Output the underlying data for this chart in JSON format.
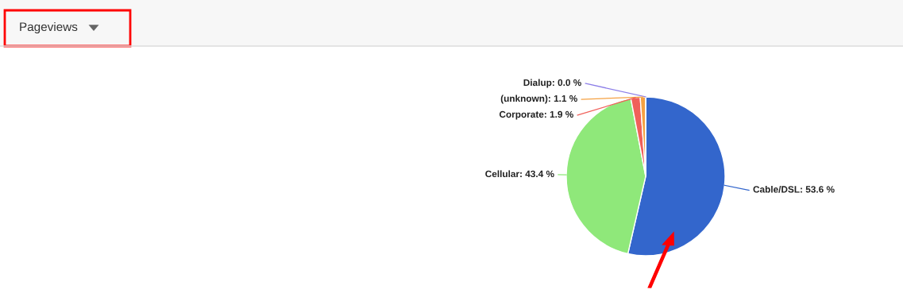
{
  "chart_data": {
    "type": "pie",
    "categories": [
      "Cable/DSL: 53.6 %",
      "Cellular: 43.4 %",
      "Corporate: 1.9 %",
      "(unknown): 1.1 %",
      "Dialup: 0.0 %"
    ],
    "values": [
      53.6,
      43.4,
      1.9,
      1.1,
      0.0
    ],
    "colors": [
      "#3366cc",
      "#8fe87a",
      "#f0605a",
      "#f5a142",
      "#8c7ee8"
    ],
    "annotations": [
      "Pageviews"
    ]
  }
}
